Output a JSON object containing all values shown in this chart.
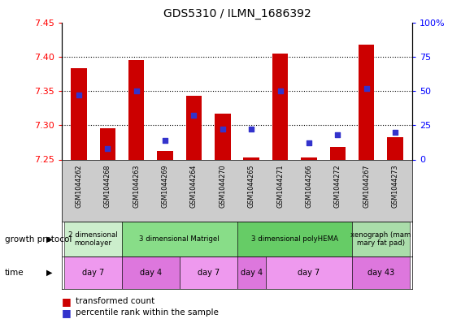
{
  "title": "GDS5310 / ILMN_1686392",
  "samples": [
    "GSM1044262",
    "GSM1044268",
    "GSM1044263",
    "GSM1044269",
    "GSM1044264",
    "GSM1044270",
    "GSM1044265",
    "GSM1044271",
    "GSM1044266",
    "GSM1044272",
    "GSM1044267",
    "GSM1044273"
  ],
  "transformed_count": [
    7.383,
    7.295,
    7.395,
    7.262,
    7.343,
    7.317,
    7.253,
    7.405,
    7.253,
    7.268,
    7.418,
    7.283
  ],
  "percentile_rank": [
    47,
    8,
    50,
    14,
    32,
    22,
    22,
    50,
    12,
    18,
    52,
    20
  ],
  "ylim_left": [
    7.25,
    7.45
  ],
  "ylim_right": [
    0,
    100
  ],
  "yticks_left": [
    7.25,
    7.3,
    7.35,
    7.4,
    7.45
  ],
  "yticks_right": [
    0,
    25,
    50,
    75,
    100
  ],
  "bar_color": "#cc0000",
  "blue_color": "#3333cc",
  "background_color": "#ffffff",
  "growth_protocol_groups": [
    {
      "label": "2 dimensional\nmonolayer",
      "start": 0,
      "end": 2,
      "color": "#cceecc"
    },
    {
      "label": "3 dimensional Matrigel",
      "start": 2,
      "end": 6,
      "color": "#88dd88"
    },
    {
      "label": "3 dimensional polyHEMA",
      "start": 6,
      "end": 10,
      "color": "#66cc66"
    },
    {
      "label": "xenograph (mam\nmary fat pad)",
      "start": 10,
      "end": 12,
      "color": "#aaddaa"
    }
  ],
  "time_groups": [
    {
      "label": "day 7",
      "start": 0,
      "end": 2,
      "color": "#ee99ee"
    },
    {
      "label": "day 4",
      "start": 2,
      "end": 4,
      "color": "#dd77dd"
    },
    {
      "label": "day 7",
      "start": 4,
      "end": 6,
      "color": "#ee99ee"
    },
    {
      "label": "day 4",
      "start": 6,
      "end": 7,
      "color": "#dd77dd"
    },
    {
      "label": "day 7",
      "start": 7,
      "end": 10,
      "color": "#ee99ee"
    },
    {
      "label": "day 43",
      "start": 10,
      "end": 12,
      "color": "#dd77dd"
    }
  ],
  "legend_red": "transformed count",
  "legend_blue": "percentile rank within the sample",
  "row_label_growth": "growth protocol",
  "row_label_time": "time",
  "bar_width": 0.55,
  "baseline": 7.25
}
